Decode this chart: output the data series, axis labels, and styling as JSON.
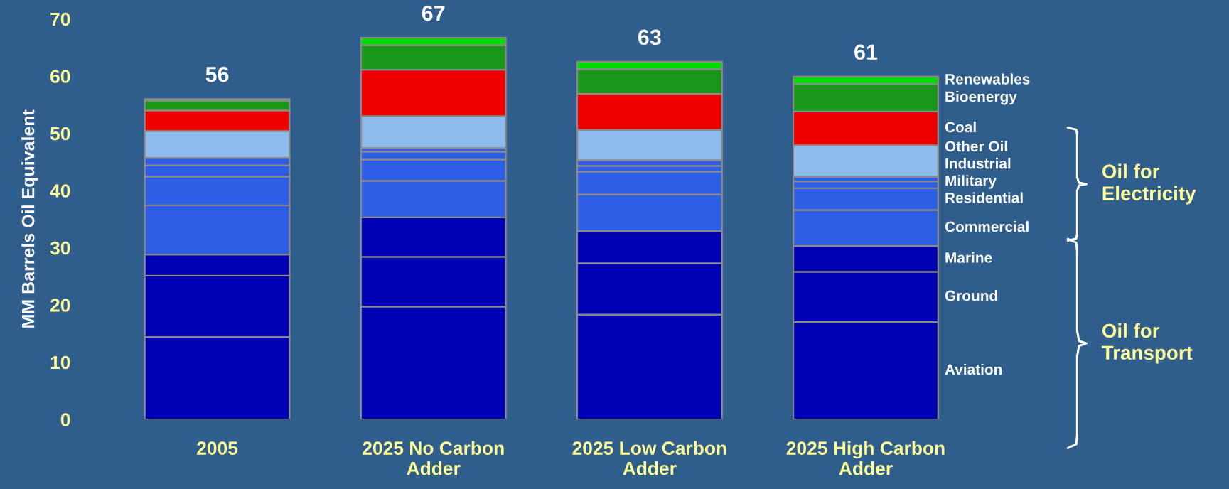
{
  "chart_data": {
    "type": "bar",
    "stacked": true,
    "ylabel": "MM Barrels Oil Equivalent",
    "categories": [
      "2005",
      "2025 No Carbon\nAdder",
      "2025 Low Carbon\nAdder",
      "2025 High Carbon\nAdder"
    ],
    "series": [
      {
        "name": "Aviation",
        "color": "#0000b4",
        "values": [
          14.4,
          19.7,
          18.3,
          17.0
        ]
      },
      {
        "name": "Ground",
        "color": "#0000b4",
        "values": [
          10.7,
          8.7,
          9.0,
          8.8
        ]
      },
      {
        "name": "Marine",
        "color": "#0000b4",
        "values": [
          3.7,
          6.9,
          5.6,
          4.5
        ]
      },
      {
        "name": "Commercial",
        "color": "#2e5ee6",
        "values": [
          8.6,
          6.4,
          6.4,
          6.3
        ]
      },
      {
        "name": "Residential",
        "color": "#2e5ee6",
        "values": [
          5.0,
          3.7,
          4.0,
          3.8
        ]
      },
      {
        "name": "Military",
        "color": "#2e5ee6",
        "values": [
          2.0,
          1.4,
          1.0,
          1.2
        ]
      },
      {
        "name": "Industrial",
        "color": "#2e5ee6",
        "values": [
          1.3,
          0.6,
          1.0,
          0.8
        ]
      },
      {
        "name": "Other Oil",
        "color": "#8cbcec",
        "values": [
          4.7,
          5.6,
          5.3,
          5.5
        ]
      },
      {
        "name": "Coal",
        "color": "#ee0000",
        "values": [
          3.6,
          8.1,
          6.3,
          5.9
        ]
      },
      {
        "name": "Bioenergy",
        "color": "#1a961a",
        "values": [
          1.7,
          4.3,
          4.3,
          4.8
        ]
      },
      {
        "name": "Renewables",
        "color": "#00dc00",
        "values": [
          0.3,
          1.3,
          1.3,
          1.3
        ]
      }
    ],
    "totals": [
      "56",
      "67",
      "63",
      "61"
    ],
    "ylim": [
      0,
      70
    ],
    "yticks": [
      0,
      10,
      20,
      30,
      40,
      50,
      60,
      70
    ],
    "annotations": [
      "Oil for\nElectricity",
      "Oil for\nTransport"
    ],
    "grid": false,
    "legend": "right"
  }
}
